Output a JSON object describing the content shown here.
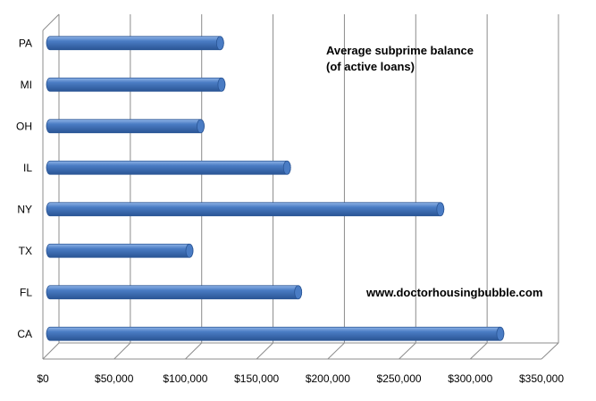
{
  "chart_data": {
    "type": "bar",
    "orientation": "horizontal",
    "title_lines": [
      "Average subprime balance",
      "(of active loans)"
    ],
    "categories": [
      "PA",
      "MI",
      "OH",
      "IL",
      "NY",
      "TX",
      "FL",
      "CA"
    ],
    "values": [
      122000,
      123000,
      108000,
      170000,
      280000,
      100000,
      178000,
      323000
    ],
    "xlim": [
      0,
      350000
    ],
    "x_ticks": [
      0,
      50000,
      100000,
      150000,
      200000,
      250000,
      300000,
      350000
    ],
    "x_tick_labels": [
      "$0",
      "$50,000",
      "$100,000",
      "$150,000",
      "$200,000",
      "$250,000",
      "$300,000",
      "$350,000"
    ],
    "annotation": "www.doctorhousingbubble.com",
    "grid": true,
    "bar_color": "#4a7cc4",
    "bar_highlight": "#8fb3e6",
    "bar_shadow": "#2a5595"
  }
}
